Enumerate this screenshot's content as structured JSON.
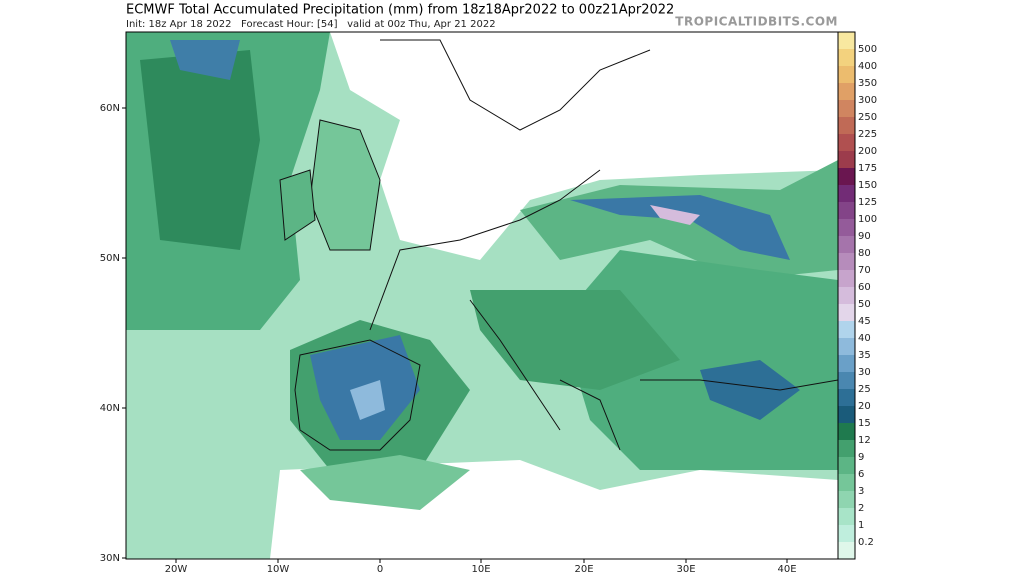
{
  "header": {
    "title": "ECMWF Total Accumulated Precipitation (mm) from 18z18Apr2022 to 00z21Apr2022",
    "subtitle": "Init: 18z Apr 18 2022   Forecast Hour: [54]   valid at 00z Thu, Apr 21 2022",
    "watermark": "TROPICALTIDBITS.COM"
  },
  "map": {
    "lat_labels": [
      "60N",
      "50N",
      "40N",
      "30N"
    ],
    "lon_labels": [
      "20W",
      "10W",
      "0",
      "10E",
      "20E",
      "30E",
      "40E"
    ]
  },
  "colorbar": {
    "labels": [
      "500",
      "400",
      "350",
      "300",
      "250",
      "225",
      "200",
      "175",
      "150",
      "125",
      "100",
      "90",
      "80",
      "70",
      "60",
      "50",
      "45",
      "40",
      "35",
      "30",
      "25",
      "20",
      "15",
      "12",
      "9",
      "6",
      "3",
      "2",
      "1",
      "0.2"
    ]
  }
}
